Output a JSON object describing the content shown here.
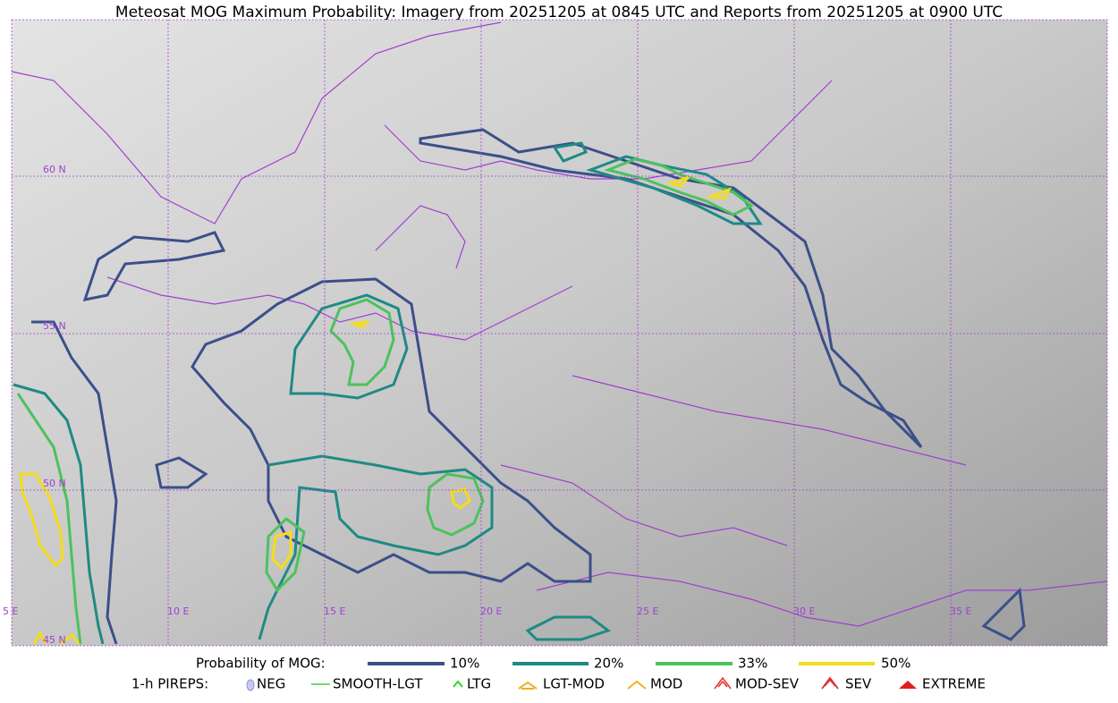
{
  "title": "Meteosat MOG Maximum Probability: Imagery from 20251205 at 0845 UTC and Reports from 20251205 at 0900 UTC",
  "map": {
    "lat_labels": [
      "60 N",
      "55 N",
      "50 N",
      "45 N"
    ],
    "lon_labels": [
      "5 E",
      "10 E",
      "15 E",
      "20 E",
      "25 E",
      "30 E",
      "35 E"
    ]
  },
  "legend": {
    "title": "Probability of MOG:",
    "items": [
      "10%",
      "20%",
      "33%",
      "50%"
    ]
  },
  "pireps": {
    "title": "1-h PIREPS:",
    "items": [
      "NEG",
      "SMOOTH-LGT",
      "LTG",
      "LGT-MOD",
      "MOD",
      "MOD-SEV",
      "SEV",
      "EXTREME"
    ]
  }
}
